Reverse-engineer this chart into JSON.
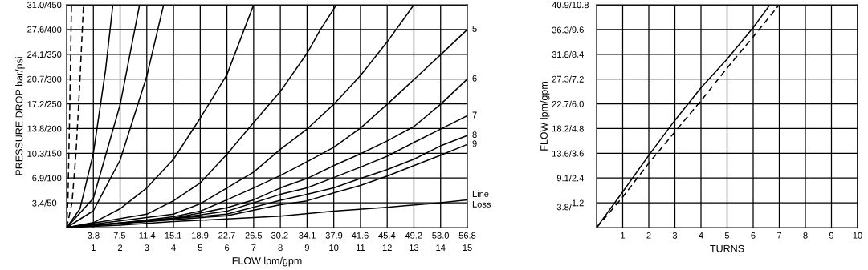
{
  "chart_data": [
    {
      "type": "line",
      "xlabel": "FLOW lpm/gpm",
      "y2label": "PRESSURE DROP bar/psi",
      "grid": true,
      "marker": "none",
      "line_style": "solid",
      "xlim": [
        0,
        15
      ],
      "ylim": [
        0,
        450
      ],
      "xticks": [
        1,
        2,
        3,
        4,
        5,
        6,
        7,
        8,
        9,
        10,
        11,
        12,
        13,
        14,
        15
      ],
      "x2lim": [
        0,
        56.8
      ],
      "x2ticks": [
        3.8,
        7.5,
        11.4,
        15.1,
        18.9,
        22.7,
        26.5,
        30.2,
        34.1,
        37.9,
        41.6,
        45.4,
        49.2,
        {
          "value": 53.0,
          "label": "53.0"
        },
        56.8
      ],
      "yticks": [
        50,
        100,
        150,
        200,
        250,
        300,
        350,
        400,
        450
      ],
      "y2lim": [
        0,
        31.0
      ],
      "y2ticks": [
        {
          "value": 3.4,
          "label": "3.4/"
        },
        {
          "value": 6.9,
          "label": "6.9/"
        },
        {
          "value": 10.3,
          "label": "10.3/"
        },
        {
          "value": 13.8,
          "label": "13.8/"
        },
        {
          "value": 17.2,
          "label": "17.2/"
        },
        {
          "value": 20.7,
          "label": "20.7/"
        },
        {
          "value": 24.1,
          "label": "24.1/"
        },
        {
          "value": 27.6,
          "label": "27.6/"
        },
        {
          "value": 31.0,
          "label": "31.0/"
        }
      ],
      "series": [
        {
          "color": "#000000",
          "line_style": "dashed",
          "x": [
            0,
            0.05,
            0.12,
            0.18
          ],
          "values": [
            0,
            60,
            250,
            450
          ]
        },
        {
          "color": "#000000",
          "line_style": "dashed",
          "x": [
            0,
            0.2,
            0.35,
            0.5,
            0.63
          ],
          "values": [
            0,
            50,
            150,
            300,
            450
          ]
        },
        {
          "color": "#000000",
          "x": [
            0,
            0.5,
            1,
            1.46,
            1.73
          ],
          "values": [
            0,
            38,
            150,
            320,
            450
          ]
        },
        {
          "color": "#000000",
          "x": [
            0,
            1,
            2,
            2.73
          ],
          "values": [
            0,
            59,
            248,
            450
          ]
        },
        {
          "color": "#000000",
          "x": [
            0,
            1,
            2,
            3,
            3.63
          ],
          "values": [
            0,
            34,
            136,
            306,
            450
          ]
        },
        {
          "color": "#000000",
          "x": [
            0,
            1,
            2,
            3,
            4,
            5,
            6,
            7.0
          ],
          "values": [
            0,
            10,
            38,
            80,
            138,
            221,
            309,
            450
          ]
        },
        {
          "color": "#000000",
          "x": [
            0,
            3,
            4,
            5,
            6,
            7,
            8,
            9,
            9.5,
            10.1
          ],
          "values": [
            0,
            27,
            54,
            90,
            148,
            212,
            275,
            352,
            400,
            450
          ]
        },
        {
          "color": "#000000",
          "x": [
            0,
            4,
            5,
            6,
            7,
            8,
            9,
            10,
            11,
            12,
            13.0
          ],
          "values": [
            0,
            27,
            48,
            80,
            112,
            158,
            199,
            249,
            307,
            375,
            450
          ]
        },
        {
          "name": "5",
          "color": "#000000",
          "x": [
            0,
            2,
            4,
            5,
            6,
            7,
            8,
            9,
            10,
            11,
            12,
            13,
            14,
            15
          ],
          "values": [
            0,
            9,
            22,
            33,
            56,
            80,
            105,
            133,
            162,
            201,
            249,
            299,
            349,
            400
          ]
        },
        {
          "name": "6",
          "color": "#000000",
          "x": [
            0,
            4,
            6,
            7,
            8,
            9,
            10,
            11,
            12,
            13,
            14,
            15
          ],
          "values": [
            0,
            19,
            40,
            56,
            80,
            99,
            125,
            149,
            175,
            204,
            249,
            300
          ]
        },
        {
          "name": "7",
          "color": "#000000",
          "x": [
            0,
            4,
            6,
            8,
            9,
            10,
            11,
            12,
            13,
            14,
            15
          ],
          "values": [
            0,
            18,
            33,
            67,
            80,
            101,
            122,
            144,
            172,
            199,
            226
          ]
        },
        {
          "name": "8",
          "color": "#000000",
          "x": [
            0,
            6,
            8,
            9,
            10,
            11,
            12,
            13,
            14,
            15
          ],
          "values": [
            0,
            27,
            55,
            67,
            80,
            99,
            117,
            138,
            165,
            186
          ]
        },
        {
          "name": "9",
          "color": "#000000",
          "x": [
            0,
            6,
            8,
            9,
            10,
            11,
            12,
            13,
            14,
            15
          ],
          "values": [
            0,
            24,
            46,
            54,
            70,
            85,
            104,
            125,
            146,
            168
          ]
        },
        {
          "name": "Line\nLoss",
          "color": "#000000",
          "x": [
            0,
            2,
            4,
            8,
            10,
            12,
            14,
            15
          ],
          "values": [
            0,
            5,
            12,
            23,
            33,
            41,
            50,
            56
          ]
        }
      ]
    },
    {
      "type": "line",
      "xlabel": "TURNS",
      "y2label": "FLOW lpm/gpm",
      "grid": true,
      "marker": "none",
      "xlim": [
        0,
        10
      ],
      "ylim": [
        0,
        10.8
      ],
      "xticks": [
        1,
        2,
        3,
        4,
        5,
        6,
        7,
        8,
        9,
        10
      ],
      "yticks": [
        1.2,
        2.4,
        3.6,
        4.8,
        {
          "value": 6.0,
          "label": "6.0"
        },
        7.2,
        8.4,
        9.6,
        10.8
      ],
      "y2lim": [
        0,
        40.9
      ],
      "y2ticks": [
        {
          "value": 3.8,
          "label": "3.8/"
        },
        {
          "value": 9.1,
          "label": "9.1/"
        },
        {
          "value": 13.6,
          "label": "13.6/"
        },
        {
          "value": 18.2,
          "label": "18.2/"
        },
        {
          "value": 22.7,
          "label": "22.7/"
        },
        {
          "value": 27.3,
          "label": "27.3/"
        },
        {
          "value": 31.8,
          "label": "31.8/"
        },
        {
          "value": 36.3,
          "label": "36.3/"
        },
        {
          "value": 40.9,
          "label": "40.9/"
        }
      ],
      "series": [
        {
          "color": "#000000",
          "line_style": "solid",
          "x": [
            0,
            1,
            2,
            3,
            4,
            5,
            6,
            6.62
          ],
          "values": [
            0,
            1.73,
            3.5,
            5.2,
            6.78,
            8.17,
            9.69,
            10.76
          ]
        },
        {
          "color": "#000000",
          "line_style": "dashed",
          "x": [
            0,
            1,
            2,
            3,
            4,
            5,
            6,
            6.97
          ],
          "values": [
            0,
            1.48,
            3.12,
            4.64,
            6.15,
            7.73,
            9.25,
            10.76
          ]
        }
      ]
    }
  ]
}
